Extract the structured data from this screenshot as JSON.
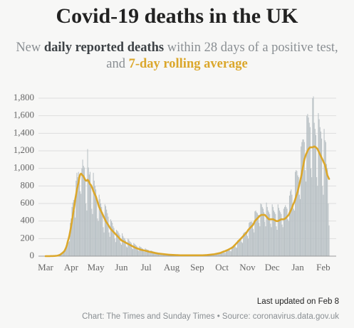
{
  "chart_data": {
    "type": "bar-line",
    "title": "Covid-19 deaths in the UK",
    "subtitle": [
      "New ",
      " within 28 days of a positive test, and "
    ],
    "updated": "Last updated on Feb 8",
    "source": "Chart: The Times and Sunday Times • Source: coronavirus.data.gov.uk",
    "categories": [
      "Mar",
      null,
      null,
      null,
      null,
      null,
      null,
      null,
      null,
      null,
      null,
      null,
      null,
      null,
      null,
      null,
      null,
      null,
      null,
      null,
      null,
      null,
      null,
      null,
      null,
      null,
      null,
      null,
      null,
      null,
      null,
      "Apr",
      null,
      null,
      null,
      null,
      null,
      null,
      null,
      null,
      null,
      null,
      null,
      null,
      null,
      null,
      null,
      null,
      null,
      null,
      null,
      null,
      null,
      null,
      null,
      null,
      null,
      null,
      null,
      null,
      null,
      "May",
      null,
      null,
      null,
      null,
      null,
      null,
      null,
      null,
      null,
      null,
      null,
      null,
      null,
      null,
      null,
      null,
      null,
      null,
      null,
      null,
      null,
      null,
      null,
      null,
      null,
      null,
      null,
      null,
      null,
      null,
      "Jun",
      null,
      null,
      null,
      null,
      null,
      null,
      null,
      null,
      null,
      null,
      null,
      null,
      null,
      null,
      null,
      null,
      null,
      null,
      null,
      null,
      null,
      null,
      null,
      null,
      null,
      null,
      null,
      null,
      null,
      "Jul",
      null,
      null,
      null,
      null,
      null,
      null,
      null,
      null,
      null,
      null,
      null,
      null,
      null,
      null,
      null,
      null,
      null,
      null,
      null,
      null,
      null,
      null,
      null,
      null,
      null,
      null,
      null,
      null,
      null,
      null,
      "Aug",
      null,
      null,
      null,
      null,
      null,
      null,
      null,
      null,
      null,
      null,
      null,
      null,
      null,
      null,
      null,
      null,
      null,
      null,
      null,
      null,
      null,
      null,
      null,
      null,
      null,
      null,
      null,
      null,
      null,
      null,
      "Sep",
      null,
      null,
      null,
      null,
      null,
      null,
      null,
      null,
      null,
      null,
      null,
      null,
      null,
      null,
      null,
      null,
      null,
      null,
      null,
      null,
      null,
      null,
      null,
      null,
      null,
      null,
      null,
      null,
      null,
      "Oct",
      null,
      null,
      null,
      null,
      null,
      null,
      null,
      null,
      null,
      null,
      null,
      null,
      null,
      null,
      null,
      null,
      null,
      null,
      null,
      null,
      null,
      null,
      null,
      null,
      null,
      null,
      null,
      null,
      null,
      null,
      "Nov",
      null,
      null,
      null,
      null,
      null,
      null,
      null,
      null,
      null,
      null,
      null,
      null,
      null,
      null,
      null,
      null,
      null,
      null,
      null,
      null,
      null,
      null,
      null,
      null,
      null,
      null,
      null,
      null,
      null,
      "Dec",
      null,
      null,
      null,
      null,
      null,
      null,
      null,
      null,
      null,
      null,
      null,
      null,
      null,
      null,
      null,
      null,
      null,
      null,
      null,
      null,
      null,
      null,
      null,
      null,
      null,
      null,
      null,
      null,
      null,
      null,
      "Jan",
      null,
      null,
      null,
      null,
      null,
      null,
      null,
      null,
      null,
      null,
      null,
      null,
      null,
      null,
      null,
      null,
      null,
      null,
      null,
      null,
      null,
      null,
      null,
      null,
      null,
      null,
      null,
      null,
      null,
      null,
      "Feb",
      null,
      null,
      null,
      null,
      null,
      null,
      null
    ],
    "series": [
      {
        "name": "daily reported deaths",
        "color": "#b9c1c5",
        "label_color": "#3d4246",
        "kind": "bar",
        "values": [
          0,
          0,
          1,
          0,
          1,
          1,
          2,
          1,
          2,
          1,
          2,
          3,
          3,
          5,
          6,
          7,
          12,
          16,
          22,
          30,
          40,
          35,
          40,
          60,
          85,
          110,
          150,
          180,
          160,
          170,
          380,
          430,
          560,
          610,
          640,
          520,
          440,
          860,
          950,
          900,
          960,
          920,
          740,
          710,
          1000,
          1100,
          1030,
          1010,
          880,
          600,
          520,
          1220,
          1010,
          930,
          960,
          820,
          540,
          480,
          950,
          860,
          800,
          760,
          630,
          430,
          400,
          700,
          650,
          600,
          560,
          500,
          330,
          270,
          590,
          570,
          530,
          490,
          450,
          270,
          220,
          420,
          400,
          380,
          340,
          320,
          200,
          160,
          300,
          290,
          280,
          260,
          240,
          150,
          130,
          260,
          230,
          210,
          200,
          180,
          110,
          100,
          200,
          190,
          170,
          160,
          150,
          90,
          80,
          150,
          140,
          130,
          120,
          110,
          70,
          60,
          115,
          105,
          100,
          90,
          85,
          55,
          50,
          90,
          80,
          75,
          72,
          70,
          40,
          38,
          65,
          60,
          55,
          52,
          50,
          30,
          28,
          45,
          42,
          40,
          38,
          35,
          20,
          18,
          32,
          30,
          28,
          26,
          25,
          15,
          14,
          25,
          22,
          20,
          19,
          17,
          10,
          9,
          16,
          15,
          14,
          13,
          13,
          8,
          8,
          14,
          13,
          12,
          12,
          11,
          7,
          7,
          13,
          12,
          12,
          11,
          11,
          7,
          6,
          13,
          12,
          12,
          11,
          11,
          7,
          6,
          13,
          12,
          12,
          11,
          11,
          7,
          6,
          13,
          12,
          13,
          13,
          12,
          9,
          8,
          16,
          17,
          18,
          18,
          17,
          14,
          13,
          25,
          27,
          29,
          30,
          28,
          25,
          24,
          45,
          46,
          48,
          52,
          50,
          40,
          35,
          70,
          70,
          72,
          75,
          72,
          60,
          55,
          110,
          115,
          118,
          120,
          115,
          100,
          95,
          180,
          185,
          190,
          195,
          190,
          160,
          150,
          260,
          270,
          275,
          280,
          275,
          230,
          200,
          380,
          390,
          390,
          395,
          380,
          310,
          270,
          510,
          520,
          500,
          490,
          470,
          380,
          340,
          600,
          590,
          560,
          540,
          500,
          390,
          340,
          610,
          560,
          520,
          500,
          480,
          370,
          330,
          590,
          560,
          520,
          500,
          480,
          340,
          300,
          590,
          550,
          520,
          500,
          480,
          360,
          330,
          540,
          560,
          580,
          560,
          540,
          420,
          400,
          690,
          740,
          760,
          700,
          600,
          540,
          520,
          960,
          980,
          970,
          920,
          900,
          700,
          650,
          1250,
          1300,
          1330,
          1330,
          1300,
          980,
          850,
          1600,
          1620,
          1580,
          1520,
          1470,
          1000,
          900,
          1800,
          1820,
          1520,
          1450,
          1380,
          900,
          800,
          1630,
          1560,
          1470,
          1420,
          1340,
          800,
          700,
          1450,
          1320,
          1300,
          1050,
          1000,
          600,
          350
        ]
      },
      {
        "name": "7-day rolling average",
        "color": "#dba72b",
        "label_color": "#dba72b",
        "kind": "line",
        "values": [
          0,
          0,
          0,
          0,
          0,
          0,
          1,
          1,
          1,
          1,
          2,
          2,
          3,
          4,
          5,
          7,
          10,
          14,
          18,
          26,
          33,
          40,
          50,
          60,
          80,
          100,
          130,
          170,
          200,
          240,
          290,
          340,
          400,
          460,
          520,
          580,
          650,
          700,
          760,
          800,
          840,
          900,
          930,
          940,
          930,
          920,
          910,
          890,
          870,
          860,
          860,
          870,
          860,
          840,
          820,
          810,
          790,
          770,
          740,
          720,
          700,
          680,
          650,
          620,
          590,
          560,
          540,
          520,
          500,
          480,
          460,
          440,
          420,
          400,
          385,
          370,
          355,
          340,
          325,
          310,
          300,
          290,
          280,
          270,
          260,
          250,
          240,
          230,
          220,
          210,
          200,
          190,
          180,
          175,
          170,
          165,
          160,
          155,
          150,
          145,
          140,
          135,
          130,
          125,
          120,
          115,
          110,
          105,
          100,
          96,
          92,
          88,
          85,
          82,
          78,
          75,
          72,
          70,
          68,
          66,
          64,
          62,
          60,
          58,
          55,
          52,
          50,
          48,
          46,
          44,
          42,
          40,
          38,
          36,
          34,
          32,
          30,
          29,
          28,
          27,
          26,
          25,
          24,
          23,
          22,
          21,
          20,
          19,
          18,
          17,
          16,
          16,
          15,
          15,
          14,
          14,
          13,
          13,
          12,
          12,
          12,
          11,
          11,
          10,
          10,
          10,
          10,
          10,
          10,
          10,
          10,
          10,
          10,
          10,
          10,
          10,
          10,
          10,
          10,
          10,
          10,
          10,
          10,
          10,
          10,
          10,
          10,
          10,
          10,
          10,
          10,
          10,
          11,
          11,
          12,
          12,
          13,
          14,
          15,
          16,
          17,
          18,
          19,
          20,
          21,
          22,
          24,
          26,
          28,
          30,
          32,
          34,
          36,
          40,
          44,
          48,
          52,
          55,
          58,
          62,
          66,
          70,
          75,
          80,
          85,
          90,
          95,
          100,
          110,
          120,
          130,
          140,
          150,
          160,
          170,
          180,
          190,
          200,
          210,
          220,
          230,
          240,
          250,
          260,
          270,
          285,
          300,
          310,
          320,
          330,
          340,
          350,
          360,
          380,
          400,
          410,
          420,
          430,
          440,
          450,
          460,
          465,
          470,
          470,
          470,
          470,
          470,
          460,
          450,
          440,
          430,
          420,
          420,
          420,
          420,
          420,
          420,
          415,
          410,
          405,
          400,
          400,
          400,
          405,
          410,
          415,
          420,
          420,
          420,
          420,
          425,
          430,
          440,
          450,
          460,
          470,
          490,
          510,
          530,
          550,
          580,
          600,
          620,
          650,
          680,
          710,
          740,
          780,
          820,
          860,
          900,
          950,
          1000,
          1050,
          1100,
          1130,
          1160,
          1180,
          1200,
          1220,
          1230,
          1240,
          1240,
          1240,
          1240,
          1245,
          1250,
          1245,
          1240,
          1230,
          1220,
          1200,
          1180,
          1160,
          1140,
          1120,
          1100,
          1080,
          1060,
          1040,
          1000,
          960,
          920,
          900,
          880
        ]
      }
    ],
    "ylim": [
      0,
      1800
    ],
    "yticks": [
      0,
      200,
      400,
      600,
      800,
      {
        "value": 1000,
        "label": "1,000"
      },
      {
        "value": 1200,
        "label": "1,200"
      },
      {
        "value": 1400,
        "label": "1,400"
      },
      {
        "value": 1600,
        "label": "1,600"
      },
      {
        "value": 1800,
        "label": "1,800"
      }
    ],
    "grid": true
  }
}
